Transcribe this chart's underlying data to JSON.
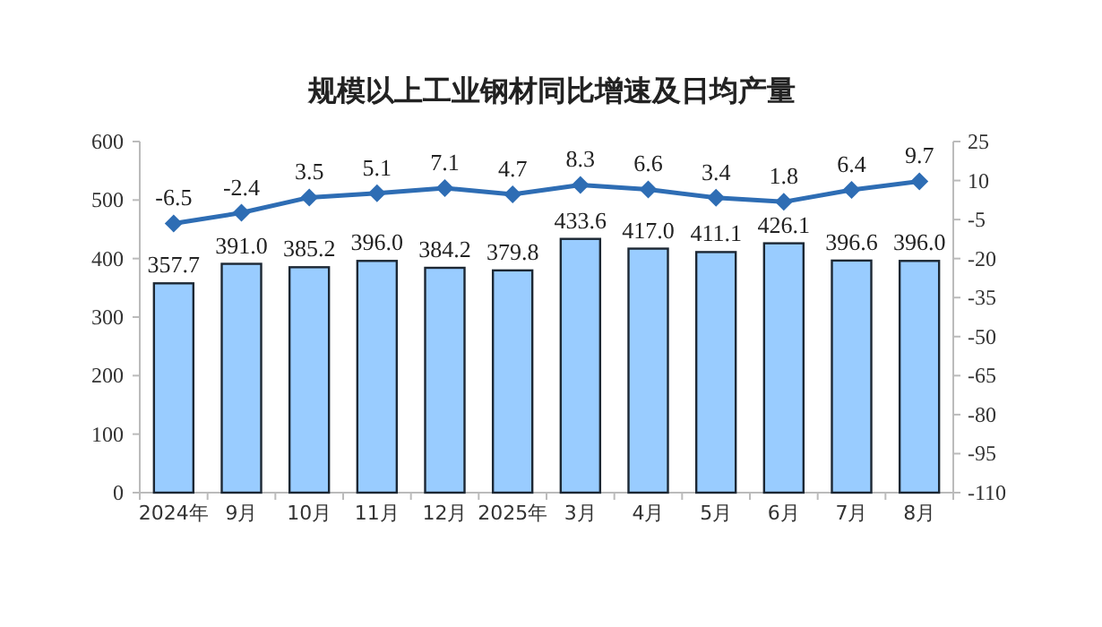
{
  "chart_data": {
    "type": "bar",
    "title": "规模以上工业钢材同比增速及日均产量",
    "categories": [
      "2024年",
      "9月",
      "10月",
      "11月",
      "12月",
      "2025年",
      "3月",
      "4月",
      "5月",
      "6月",
      "7月",
      "8月"
    ],
    "series": [
      {
        "color": "#99ccff",
        "values": [
          357.7,
          391.0,
          385.2,
          396.0,
          384.2,
          379.8,
          433.6,
          417.0,
          411.1,
          426.1,
          396.6,
          396.0
        ],
        "value_labels": [
          "357.7",
          "391.0",
          "385.2",
          "396.0",
          "384.2",
          "379.8",
          "433.6",
          "417.0",
          "411.1",
          "426.1",
          "396.6",
          "396.0"
        ]
      },
      {
        "type": "line",
        "axis": "y2",
        "color": "#2e6db4",
        "values": [
          -6.5,
          -2.4,
          3.5,
          5.1,
          7.1,
          4.7,
          8.3,
          6.6,
          3.4,
          1.8,
          6.4,
          9.7
        ]
      }
    ],
    "ylim": [
      0,
      600
    ],
    "yticks": [
      0,
      100,
      200,
      300,
      400,
      500,
      600
    ],
    "y2lim": [
      -110,
      25
    ],
    "y2ticks": [
      -110,
      -95,
      -80,
      -65,
      -50,
      -35,
      -20,
      -5,
      10,
      25
    ],
    "data_labels": true,
    "grid": false,
    "marker": "diamond",
    "line_style": "solid"
  }
}
